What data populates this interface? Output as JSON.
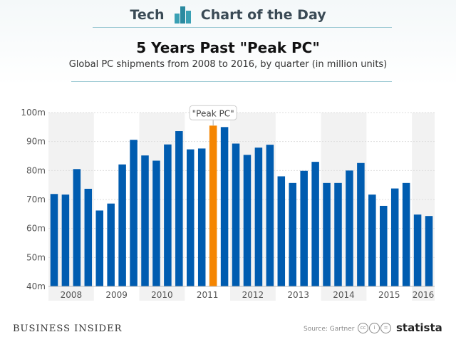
{
  "header": {
    "left": "Tech",
    "right": "Chart of the Day"
  },
  "title": "5 Years Past \"Peak PC\"",
  "subtitle": "Global PC shipments from 2008 to 2016, by quarter (in million units)",
  "footer": {
    "publisher": "BUSINESS INSIDER",
    "source": "Source: Gartner",
    "brand": "statista",
    "cc_icons": [
      "cc",
      "i",
      "="
    ]
  },
  "colors": {
    "bar": "#005cb0",
    "highlight": "#f58500",
    "band": "#f2f2f2"
  },
  "chart_data": {
    "type": "bar",
    "title": "5 Years Past \"Peak PC\"",
    "years": [
      "2008",
      "2009",
      "2010",
      "2011",
      "2012",
      "2013",
      "2014",
      "2015",
      "2016"
    ],
    "quarters_per_year": [
      4,
      4,
      4,
      4,
      4,
      4,
      4,
      4,
      2
    ],
    "values": [
      71.9,
      71.7,
      80.5,
      73.7,
      66.2,
      68.6,
      82.1,
      90.6,
      85.2,
      83.4,
      89.0,
      93.6,
      87.3,
      87.6,
      95.5,
      95.0,
      89.3,
      85.4,
      87.9,
      88.9,
      78.0,
      75.7,
      79.9,
      83.0,
      75.7,
      75.7,
      80.0,
      82.6,
      71.7,
      67.8,
      73.8,
      75.7,
      64.8,
      64.3
    ],
    "highlight_index": 14,
    "annotation": "\"Peak PC\"",
    "ylim": [
      40,
      100
    ],
    "yticks": [
      40,
      50,
      60,
      70,
      80,
      90,
      100
    ],
    "ytick_suffix": "m",
    "grid": true
  }
}
